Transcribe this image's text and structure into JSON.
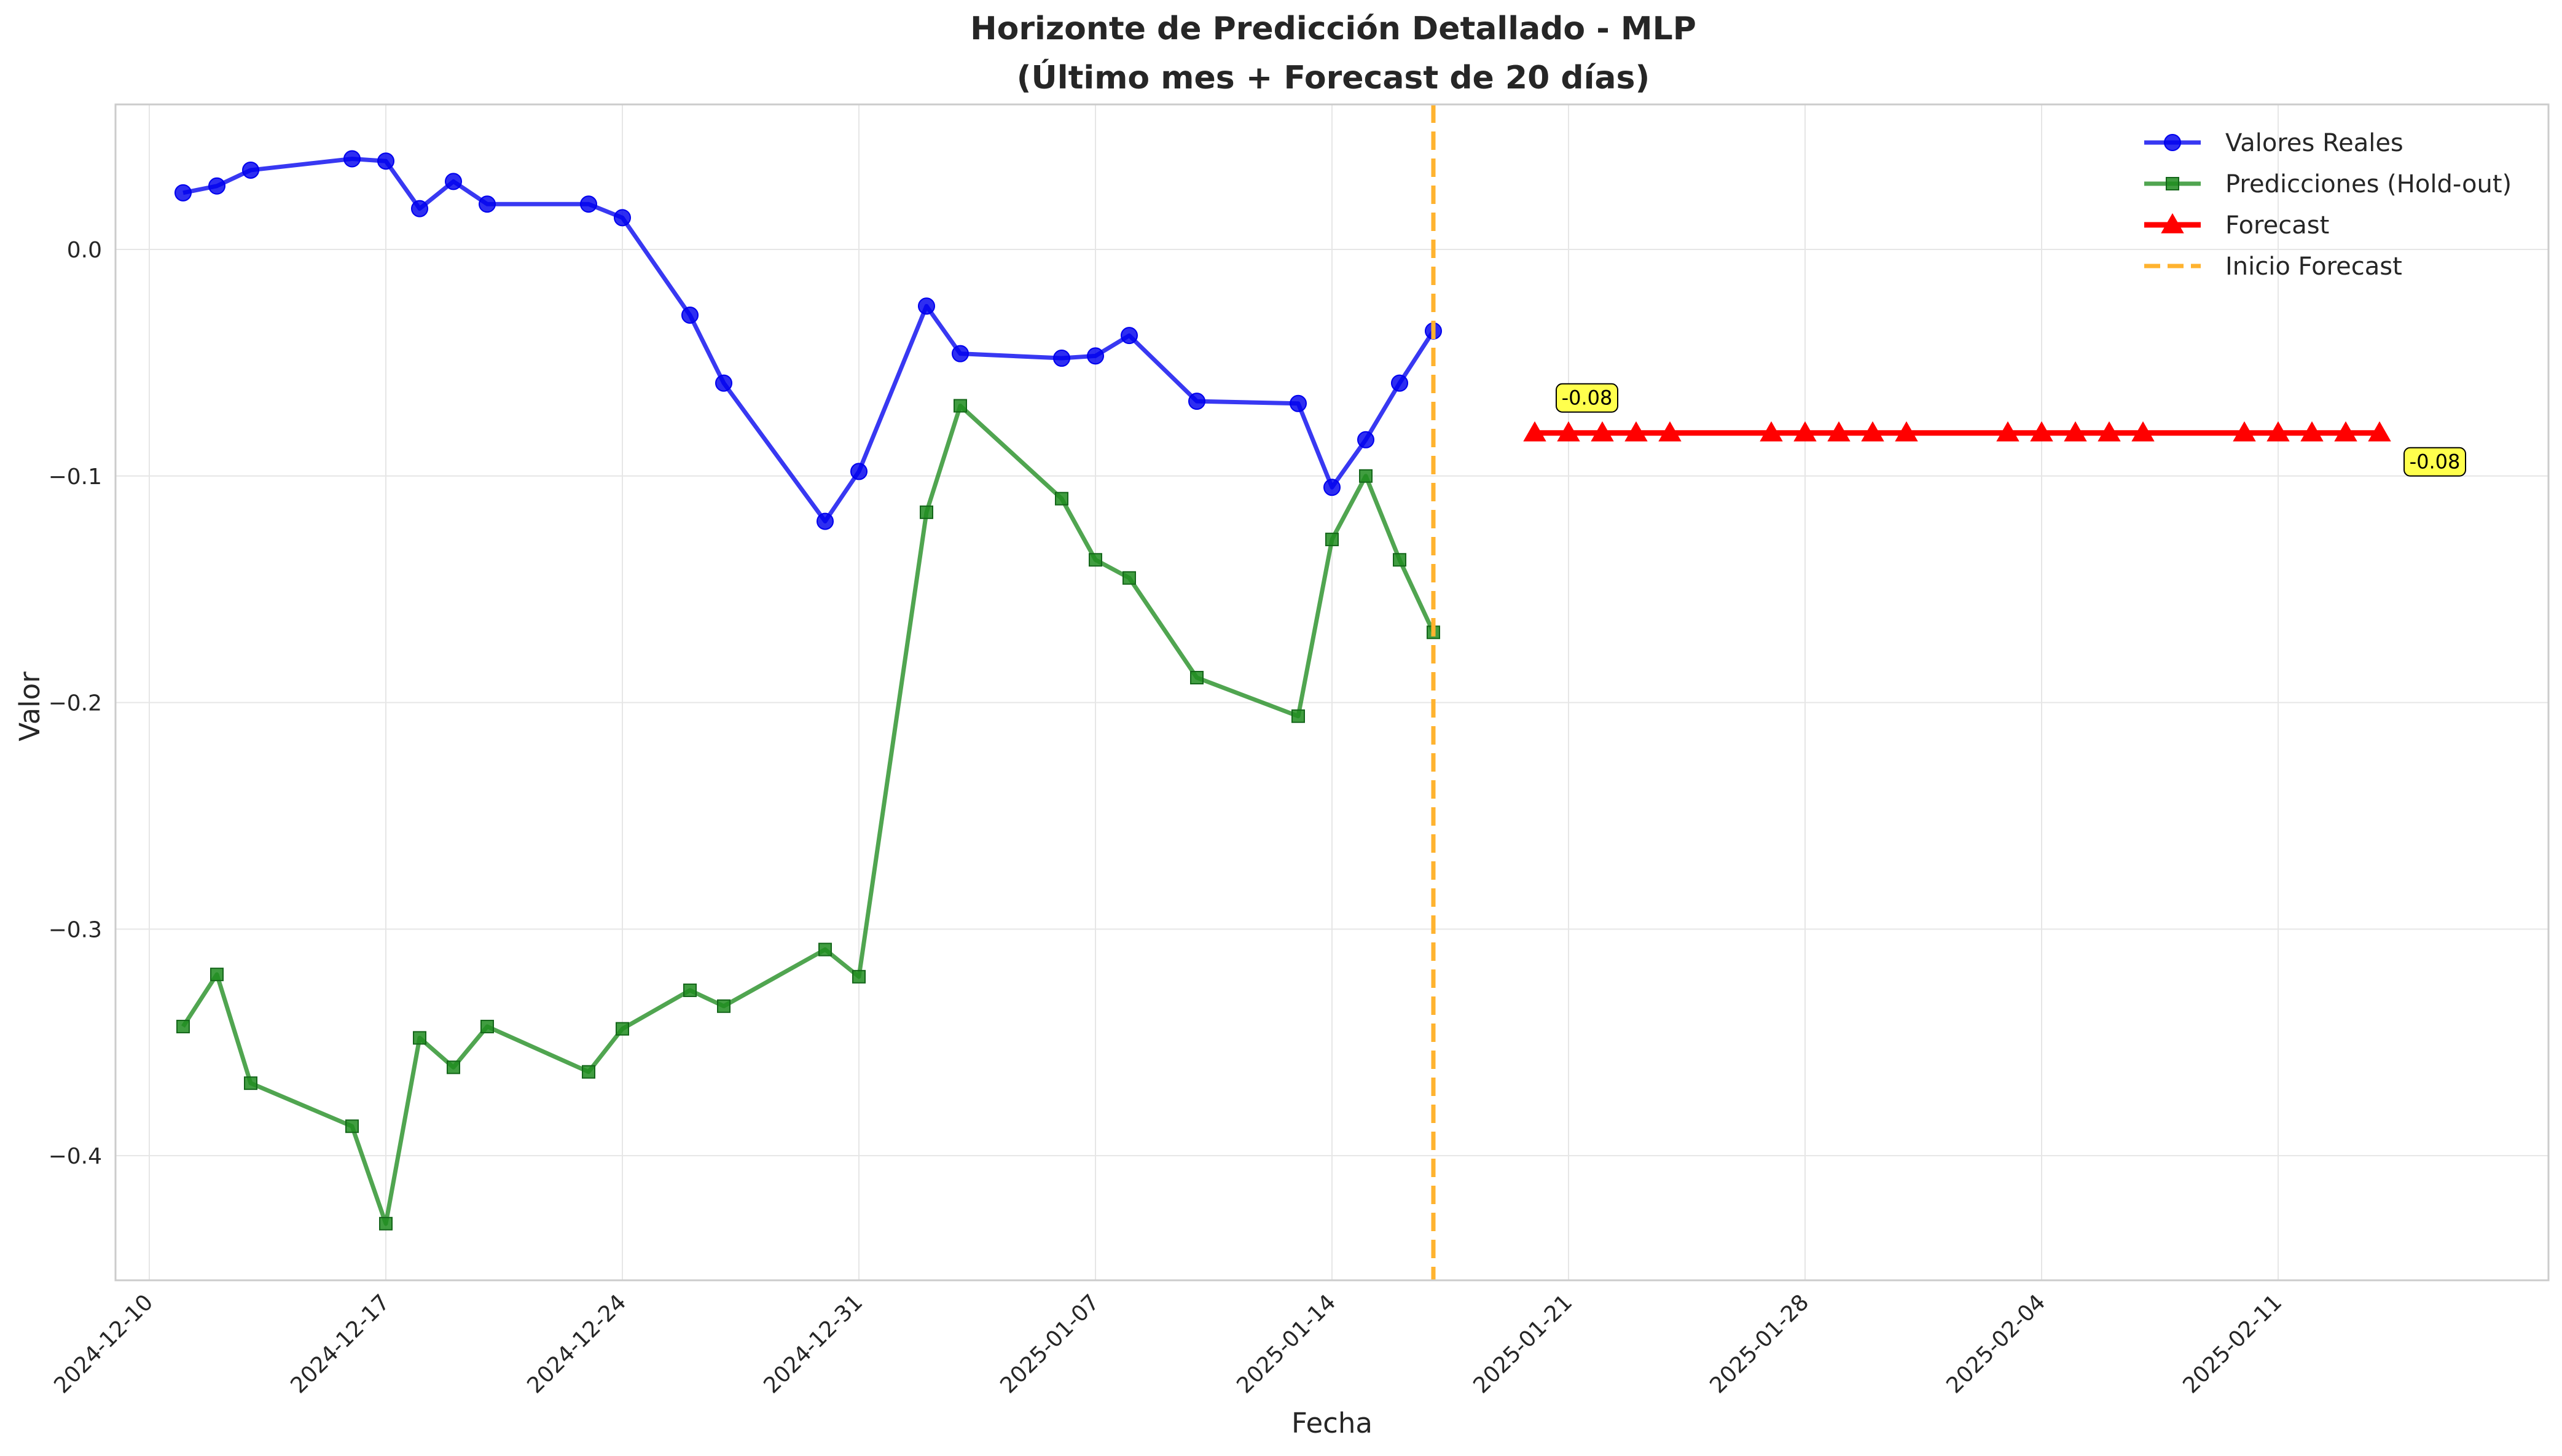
{
  "chart_data": {
    "type": "line",
    "title": "Horizonte de Predicción Detallado - MLP",
    "subtitle": "(Último mes + Forecast de 20 días)",
    "xlabel": "Fecha",
    "ylabel": "Valor",
    "x_type": "date",
    "xlim": [
      "2024-12-09",
      "2025-02-19"
    ],
    "ylim": [
      -0.455,
      0.064
    ],
    "x_ticks": [
      "2024-12-10",
      "2024-12-17",
      "2024-12-24",
      "2024-12-31",
      "2025-01-07",
      "2025-01-14",
      "2025-01-21",
      "2025-01-28",
      "2025-02-04",
      "2025-02-11"
    ],
    "y_ticks": [
      0.0,
      -0.1,
      -0.2,
      -0.3,
      -0.4
    ],
    "y_tick_labels": [
      "0.0",
      "−0.1",
      "−0.2",
      "−0.3",
      "−0.4"
    ],
    "grid": true,
    "legend_position": "top-right",
    "series": [
      {
        "name": "Valores Reales",
        "color": "#0000ee",
        "marker": "circle",
        "points": [
          [
            "2024-12-11",
            0.025
          ],
          [
            "2024-12-12",
            0.028
          ],
          [
            "2024-12-13",
            0.035
          ],
          [
            "2024-12-16",
            0.04
          ],
          [
            "2024-12-17",
            0.039
          ],
          [
            "2024-12-18",
            0.018
          ],
          [
            "2024-12-19",
            0.03
          ],
          [
            "2024-12-20",
            0.02
          ],
          [
            "2024-12-23",
            0.02
          ],
          [
            "2024-12-24",
            0.014
          ],
          [
            "2024-12-26",
            -0.029
          ],
          [
            "2024-12-27",
            -0.059
          ],
          [
            "2024-12-30",
            -0.12
          ],
          [
            "2024-12-31",
            -0.098
          ],
          [
            "2025-01-02",
            -0.025
          ],
          [
            "2025-01-03",
            -0.046
          ],
          [
            "2025-01-06",
            -0.048
          ],
          [
            "2025-01-07",
            -0.047
          ],
          [
            "2025-01-08",
            -0.038
          ],
          [
            "2025-01-10",
            -0.067
          ],
          [
            "2025-01-13",
            -0.068
          ],
          [
            "2025-01-14",
            -0.105
          ],
          [
            "2025-01-15",
            -0.084
          ],
          [
            "2025-01-16",
            -0.059
          ],
          [
            "2025-01-17",
            -0.036
          ]
        ]
      },
      {
        "name": "Predicciones (Hold-out)",
        "color": "#1f8c1f",
        "marker": "square",
        "points": [
          [
            "2024-12-11",
            -0.343
          ],
          [
            "2024-12-12",
            -0.32
          ],
          [
            "2024-12-13",
            -0.368
          ],
          [
            "2024-12-16",
            -0.387
          ],
          [
            "2024-12-17",
            -0.43
          ],
          [
            "2024-12-18",
            -0.348
          ],
          [
            "2024-12-19",
            -0.361
          ],
          [
            "2024-12-20",
            -0.343
          ],
          [
            "2024-12-23",
            -0.363
          ],
          [
            "2024-12-24",
            -0.344
          ],
          [
            "2024-12-26",
            -0.327
          ],
          [
            "2024-12-27",
            -0.334
          ],
          [
            "2024-12-30",
            -0.309
          ],
          [
            "2024-12-31",
            -0.321
          ],
          [
            "2025-01-02",
            -0.116
          ],
          [
            "2025-01-03",
            -0.069
          ],
          [
            "2025-01-06",
            -0.11
          ],
          [
            "2025-01-07",
            -0.137
          ],
          [
            "2025-01-08",
            -0.145
          ],
          [
            "2025-01-10",
            -0.189
          ],
          [
            "2025-01-13",
            -0.206
          ],
          [
            "2025-01-14",
            -0.128
          ],
          [
            "2025-01-15",
            -0.1
          ],
          [
            "2025-01-16",
            -0.137
          ],
          [
            "2025-01-17",
            -0.169
          ]
        ]
      },
      {
        "name": "Forecast",
        "color": "#ff0000",
        "marker": "triangle",
        "points": [
          [
            "2025-01-20",
            -0.081
          ],
          [
            "2025-01-21",
            -0.081
          ],
          [
            "2025-01-22",
            -0.081
          ],
          [
            "2025-01-23",
            -0.081
          ],
          [
            "2025-01-24",
            -0.081
          ],
          [
            "2025-01-27",
            -0.081
          ],
          [
            "2025-01-28",
            -0.081
          ],
          [
            "2025-01-29",
            -0.081
          ],
          [
            "2025-01-30",
            -0.081
          ],
          [
            "2025-01-31",
            -0.081
          ],
          [
            "2025-02-03",
            -0.081
          ],
          [
            "2025-02-04",
            -0.081
          ],
          [
            "2025-02-05",
            -0.081
          ],
          [
            "2025-02-06",
            -0.081
          ],
          [
            "2025-02-07",
            -0.081
          ],
          [
            "2025-02-10",
            -0.081
          ],
          [
            "2025-02-11",
            -0.081
          ],
          [
            "2025-02-12",
            -0.081
          ],
          [
            "2025-02-13",
            -0.081
          ],
          [
            "2025-02-14",
            -0.081
          ]
        ]
      }
    ],
    "vline": {
      "name": "Inicio Forecast",
      "x": "2025-01-17",
      "color": "#ffb32f",
      "style": "dashed"
    },
    "annotations": [
      {
        "text": "-0.08",
        "x": "2025-01-21",
        "y": -0.081,
        "anchor": "above",
        "color": "#ffff4d"
      },
      {
        "text": "-0.08",
        "x": "2025-02-14",
        "y": -0.081,
        "anchor": "below-right",
        "color": "#ffff4d"
      }
    ]
  }
}
